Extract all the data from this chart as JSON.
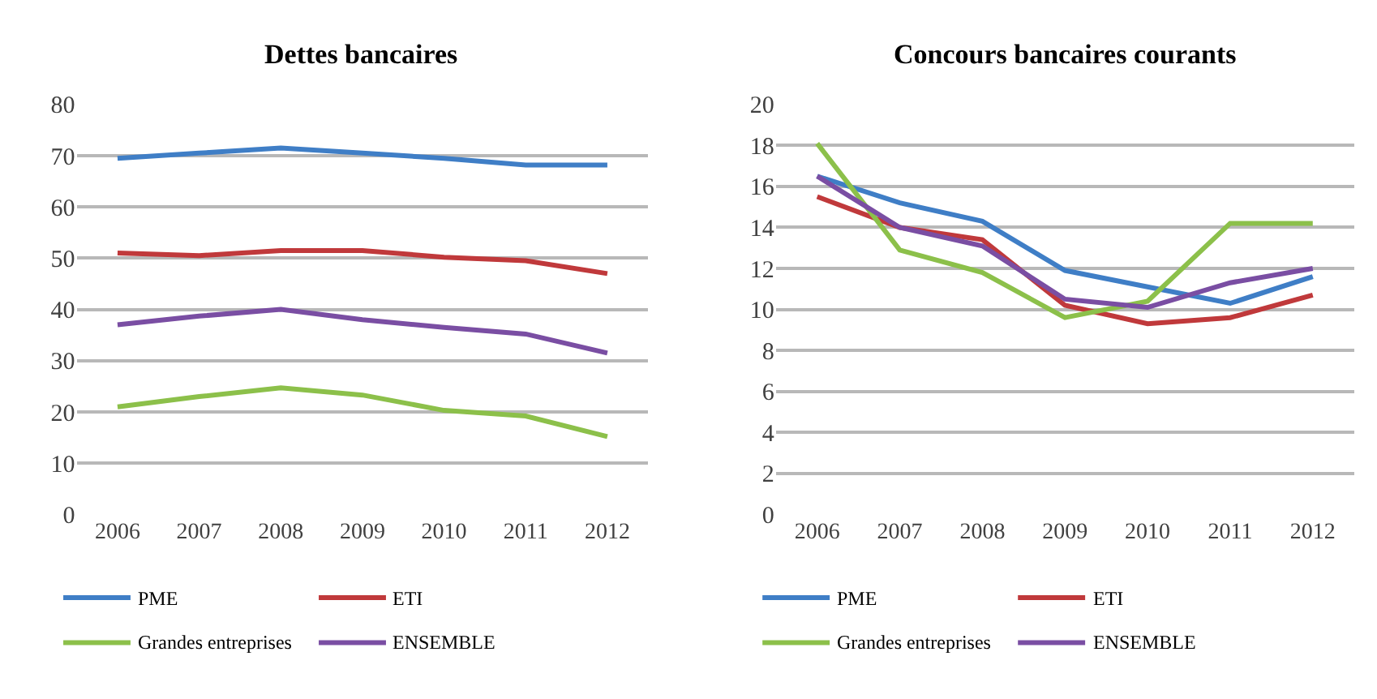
{
  "chart_data": [
    {
      "type": "line",
      "title": "Dettes bancaires",
      "categories": [
        "2006",
        "2007",
        "2008",
        "2009",
        "2010",
        "2011",
        "2012"
      ],
      "ylim": [
        0,
        80
      ],
      "yticks": [
        0,
        10,
        20,
        30,
        40,
        50,
        60,
        70,
        80
      ],
      "grid": "y",
      "legend": "bottom",
      "marker": "none",
      "line_style": "solid",
      "series": [
        {
          "name": "PME",
          "color": "#3f7ec6",
          "values": [
            69.5,
            70.5,
            71.5,
            70.5,
            69.5,
            68.2,
            68.2
          ]
        },
        {
          "name": "ETI",
          "color": "#c0393b",
          "values": [
            51,
            50.5,
            51.5,
            51.5,
            50.2,
            49.5,
            47
          ]
        },
        {
          "name": "Grandes entreprises",
          "color": "#8cc04a",
          "values": [
            21,
            23,
            24.7,
            23.3,
            20.3,
            19.2,
            15.2
          ]
        },
        {
          "name": "ENSEMBLE",
          "color": "#7a4ea3",
          "values": [
            37,
            38.7,
            40,
            38,
            36.5,
            35.2,
            31.5
          ]
        }
      ]
    },
    {
      "type": "line",
      "title": "Concours bancaires courants",
      "categories": [
        "2006",
        "2007",
        "2008",
        "2009",
        "2010",
        "2011",
        "2012"
      ],
      "ylim": [
        0,
        20
      ],
      "yticks": [
        0,
        2,
        4,
        6,
        8,
        10,
        12,
        14,
        16,
        18,
        20
      ],
      "grid": "y",
      "legend": "bottom",
      "marker": "none",
      "line_style": "solid",
      "series": [
        {
          "name": "PME",
          "color": "#3f7ec6",
          "values": [
            16.5,
            15.2,
            14.3,
            11.9,
            11.1,
            10.3,
            11.6
          ]
        },
        {
          "name": "ETI",
          "color": "#c0393b",
          "values": [
            15.5,
            14.0,
            13.4,
            10.2,
            9.3,
            9.6,
            10.7
          ]
        },
        {
          "name": "Grandes entreprises",
          "color": "#8cc04a",
          "values": [
            18.1,
            12.9,
            11.8,
            9.6,
            10.4,
            14.2,
            14.2
          ]
        },
        {
          "name": "ENSEMBLE",
          "color": "#7a4ea3",
          "values": [
            16.5,
            14.0,
            13.1,
            10.5,
            10.1,
            11.3,
            12.0
          ]
        }
      ]
    }
  ]
}
